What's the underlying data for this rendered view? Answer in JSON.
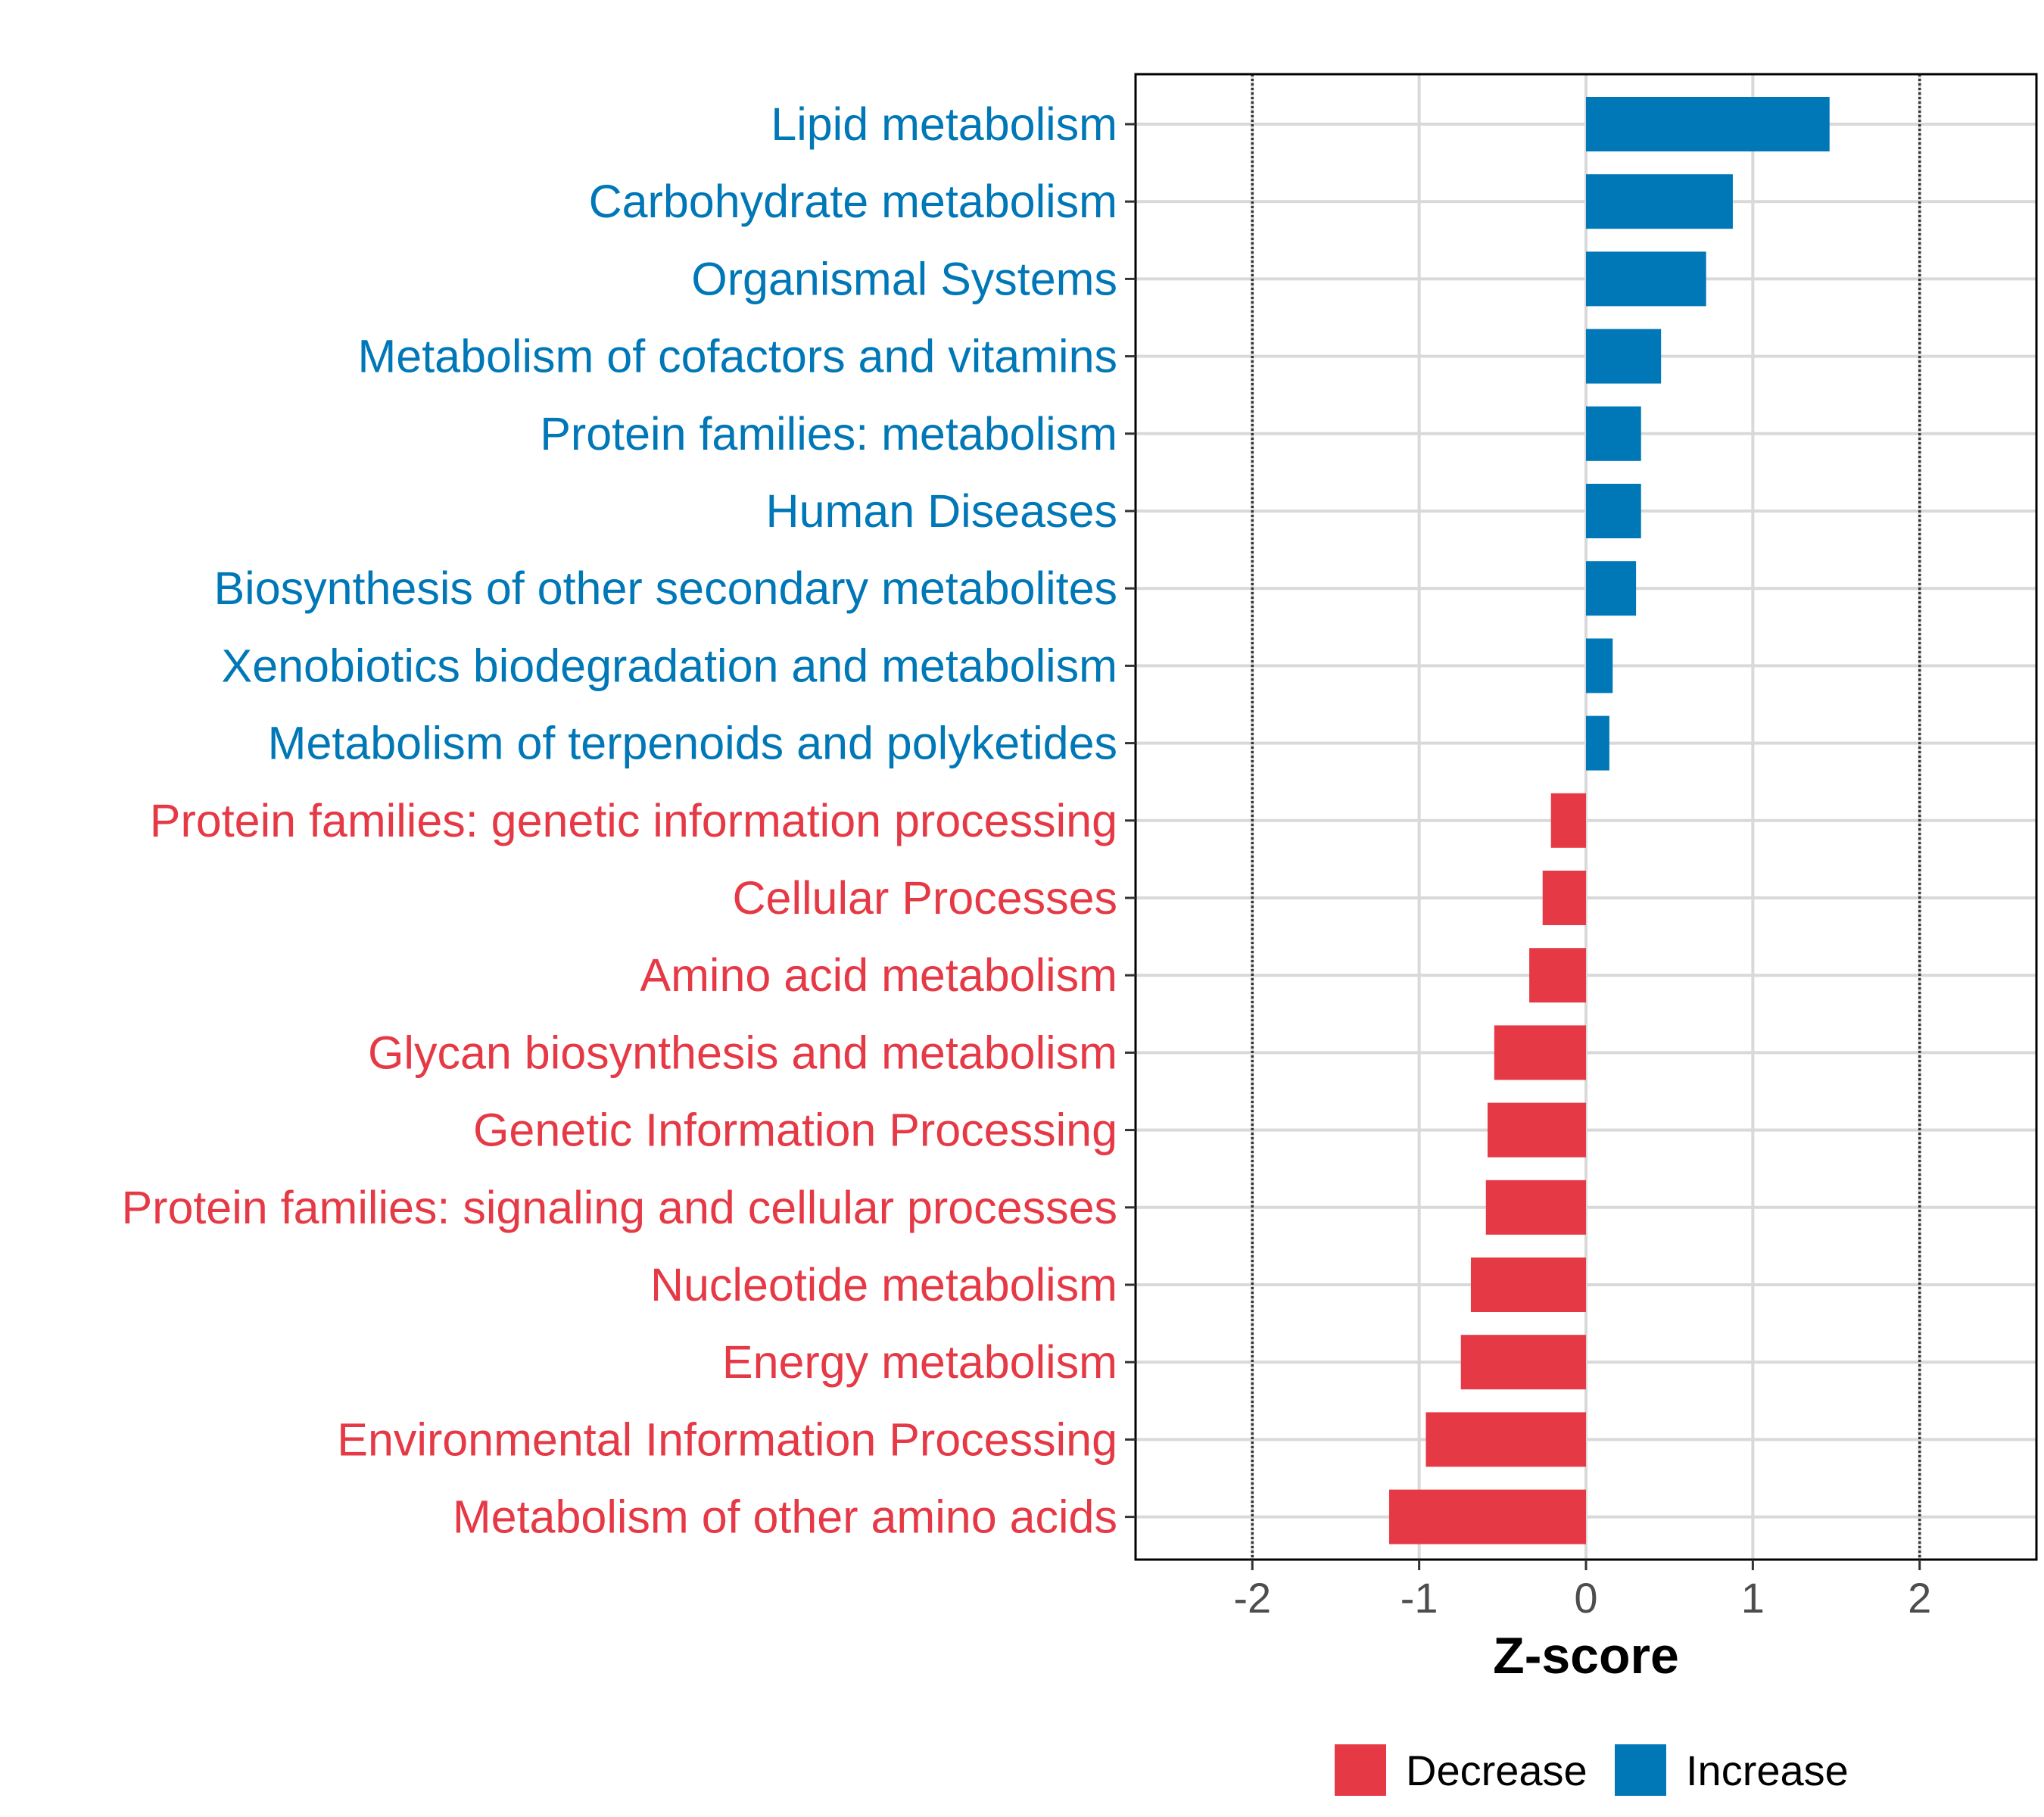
{
  "chart_data": {
    "type": "bar",
    "orientation": "horizontal",
    "title": "",
    "xlabel": "Z-score",
    "ylabel": "",
    "xlim": [
      -2.7,
      2.7
    ],
    "xticks": [
      -2,
      -1,
      0,
      1,
      2
    ],
    "xtick_labels": [
      "-2",
      "-1",
      "0",
      "1",
      "2"
    ],
    "reference_lines": [
      -2,
      2
    ],
    "grid": true,
    "categories": [
      "Lipid metabolism",
      "Carbohydrate metabolism",
      "Organismal Systems",
      "Metabolism of cofactors and vitamins",
      "Protein families: metabolism",
      "Human Diseases",
      "Biosynthesis of other secondary metabolites",
      "Xenobiotics biodegradation and metabolism",
      "Metabolism of terpenoids and polyketides",
      "Protein families: genetic information processing",
      "Cellular Processes",
      "Amino acid metabolism",
      "Glycan biosynthesis and metabolism",
      "Genetic Information Processing",
      "Protein families: signaling and cellular processes",
      "Nucleotide metabolism",
      "Energy metabolism",
      "Environmental Information Processing",
      "Metabolism of other amino acids"
    ],
    "values": [
      1.46,
      0.88,
      0.72,
      0.45,
      0.33,
      0.33,
      0.3,
      0.16,
      0.14,
      -0.21,
      -0.26,
      -0.34,
      -0.55,
      -0.59,
      -0.6,
      -0.69,
      -0.75,
      -0.96,
      -1.18
    ],
    "groups": [
      "Increase",
      "Increase",
      "Increase",
      "Increase",
      "Increase",
      "Increase",
      "Increase",
      "Increase",
      "Increase",
      "Decrease",
      "Decrease",
      "Decrease",
      "Decrease",
      "Decrease",
      "Decrease",
      "Decrease",
      "Decrease",
      "Decrease",
      "Decrease"
    ],
    "legend": {
      "position": "bottom",
      "entries": [
        {
          "label": "Decrease",
          "color": "#E63946"
        },
        {
          "label": "Increase",
          "color": "#0077B6"
        }
      ]
    }
  }
}
